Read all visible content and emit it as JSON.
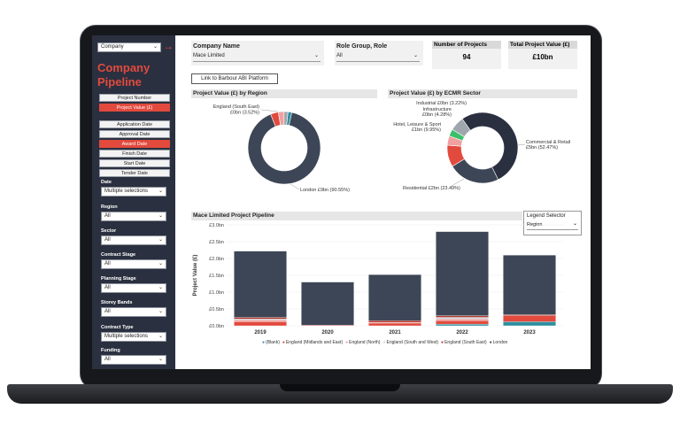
{
  "sidebar": {
    "company_dropdown": "Company",
    "title": "Company Pipeline",
    "metric_buttons": [
      {
        "label": "Project Number",
        "active": false
      },
      {
        "label": "Project Value (£)",
        "active": true
      }
    ],
    "date_buttons": [
      {
        "label": "Application Date",
        "active": false
      },
      {
        "label": "Approval Date",
        "active": false
      },
      {
        "label": "Award Date",
        "active": true
      },
      {
        "label": "Finish Date",
        "active": false
      },
      {
        "label": "Start Date",
        "active": false
      },
      {
        "label": "Tender Date",
        "active": false
      }
    ],
    "filters": [
      {
        "label": "Date",
        "value": "Multiple selections"
      },
      {
        "label": "Region",
        "value": "All"
      },
      {
        "label": "Sector",
        "value": "All"
      },
      {
        "label": "Contract Stage",
        "value": "All"
      },
      {
        "label": "Planning Stage",
        "value": "All"
      },
      {
        "label": "Storey Bands",
        "value": "All"
      },
      {
        "label": "Contract Type",
        "value": "Multiple selections"
      },
      {
        "label": "Funding",
        "value": "All"
      }
    ]
  },
  "header": {
    "company_name_label": "Company Name",
    "company_name_value": "Mace Limited",
    "role_label": "Role Group, Role",
    "role_value": "All",
    "num_projects_label": "Number of Projects",
    "num_projects_value": "94",
    "total_value_label": "Total Project Value (£)",
    "total_value_value": "£10bn",
    "link_button": "Link to Barbour ABI Platform"
  },
  "colors": {
    "navy": "#3d4656",
    "red": "#e24a3d",
    "teal": "#2f8fa0",
    "green": "#3bbf6b",
    "pink": "#f0a0a0",
    "grey": "#a0a6ad",
    "dark": "#2b3040"
  },
  "chart_data": [
    {
      "type": "pie",
      "title": "Project Value (£) by Region",
      "slices": [
        {
          "name": "London",
          "value": 90.55,
          "label": "London £9bn (90.55%)",
          "color": "#3d4656"
        },
        {
          "name": "England (South East)",
          "value": 3.52,
          "label": "England (South East) £0bn (3.52%)",
          "color": "#e24a3d"
        },
        {
          "name": "England (Midlands and East)",
          "value": 2.5,
          "label": "",
          "color": "#f0a0a0"
        },
        {
          "name": "England (North)",
          "value": 1.8,
          "label": "",
          "color": "#a0a6ad"
        },
        {
          "name": "(Blank)",
          "value": 1.63,
          "label": "",
          "color": "#2f8fa0"
        }
      ]
    },
    {
      "type": "pie",
      "title": "Project Value (£) by ECMR Sector",
      "slices": [
        {
          "name": "Commercial & Retail",
          "value": 52.47,
          "label": "Commercial & Retail £5bn (52.47%)",
          "color": "#2b3040"
        },
        {
          "name": "Residential",
          "value": 23.49,
          "label": "Residential £2bn (23.49%)",
          "color": "#3d4656"
        },
        {
          "name": "Hotel, Leisure & Sport",
          "value": 9.95,
          "label": "Hotel, Leisure & Sport £1bn (9.95%)",
          "color": "#e24a3d"
        },
        {
          "name": "Infrastructure",
          "value": 4.28,
          "label": "Infrastructure £0bn (4.28%)",
          "color": "#f0a0a0"
        },
        {
          "name": "Industrial",
          "value": 3.22,
          "label": "Industrial £0bn (3.22%)",
          "color": "#3bbf6b"
        },
        {
          "name": "Other",
          "value": 6.59,
          "label": "",
          "color": "#a0a6ad"
        }
      ]
    },
    {
      "type": "bar",
      "title": "Mace Limited Project Pipeline",
      "ylabel": "Project Value (£)",
      "yticks": [
        "£0.0bn",
        "£0.5bn",
        "£1.0bn",
        "£1.5bn",
        "£2.0bn",
        "£2.5bn",
        "£3.0bn"
      ],
      "ylim": [
        0,
        3.0
      ],
      "categories": [
        "2019",
        "2020",
        "2021",
        "2022",
        "2023"
      ],
      "series": [
        {
          "name": "(Blank)",
          "color": "#2f8fa0",
          "values": [
            0.0,
            0.0,
            0.0,
            0.05,
            0.12
          ]
        },
        {
          "name": "England (Midlands and East)",
          "color": "#e24a3d",
          "values": [
            0.12,
            0.0,
            0.08,
            0.1,
            0.18
          ]
        },
        {
          "name": "England (North)",
          "color": "#f0a0a0",
          "values": [
            0.05,
            0.0,
            0.02,
            0.05,
            0.0
          ]
        },
        {
          "name": "England (South and West)",
          "color": "#cfd3d8",
          "values": [
            0.03,
            0.0,
            0.0,
            0.05,
            0.0
          ]
        },
        {
          "name": "England (South East)",
          "color": "#b3392f",
          "values": [
            0.05,
            0.02,
            0.05,
            0.05,
            0.03
          ]
        },
        {
          "name": "London",
          "color": "#3d4656",
          "values": [
            1.97,
            1.28,
            1.37,
            2.5,
            1.77
          ]
        }
      ]
    }
  ],
  "legend_selector": {
    "label": "Legend Selector",
    "value": "Region"
  }
}
